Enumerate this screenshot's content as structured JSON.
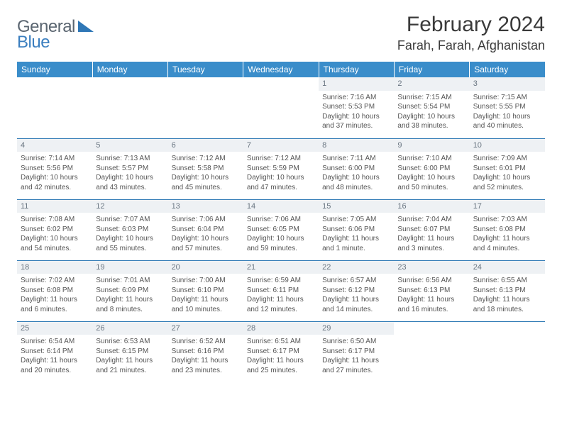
{
  "logo": {
    "text1": "General",
    "text2": "Blue",
    "triangle_color": "#2f77b6"
  },
  "header": {
    "month_title": "February 2024",
    "location": "Farah, Farah, Afghanistan"
  },
  "colors": {
    "header_bg": "#3a8dca",
    "header_text": "#ffffff",
    "rule": "#2f7ab5",
    "daynum_bg": "#eef1f4",
    "daynum_text": "#6a7682",
    "body_text": "#555555"
  },
  "day_headers": [
    "Sunday",
    "Monday",
    "Tuesday",
    "Wednesday",
    "Thursday",
    "Friday",
    "Saturday"
  ],
  "weeks": [
    [
      null,
      null,
      null,
      null,
      {
        "n": "1",
        "sr": "Sunrise: 7:16 AM",
        "ss": "Sunset: 5:53 PM",
        "dl1": "Daylight: 10 hours",
        "dl2": "and 37 minutes."
      },
      {
        "n": "2",
        "sr": "Sunrise: 7:15 AM",
        "ss": "Sunset: 5:54 PM",
        "dl1": "Daylight: 10 hours",
        "dl2": "and 38 minutes."
      },
      {
        "n": "3",
        "sr": "Sunrise: 7:15 AM",
        "ss": "Sunset: 5:55 PM",
        "dl1": "Daylight: 10 hours",
        "dl2": "and 40 minutes."
      }
    ],
    [
      {
        "n": "4",
        "sr": "Sunrise: 7:14 AM",
        "ss": "Sunset: 5:56 PM",
        "dl1": "Daylight: 10 hours",
        "dl2": "and 42 minutes."
      },
      {
        "n": "5",
        "sr": "Sunrise: 7:13 AM",
        "ss": "Sunset: 5:57 PM",
        "dl1": "Daylight: 10 hours",
        "dl2": "and 43 minutes."
      },
      {
        "n": "6",
        "sr": "Sunrise: 7:12 AM",
        "ss": "Sunset: 5:58 PM",
        "dl1": "Daylight: 10 hours",
        "dl2": "and 45 minutes."
      },
      {
        "n": "7",
        "sr": "Sunrise: 7:12 AM",
        "ss": "Sunset: 5:59 PM",
        "dl1": "Daylight: 10 hours",
        "dl2": "and 47 minutes."
      },
      {
        "n": "8",
        "sr": "Sunrise: 7:11 AM",
        "ss": "Sunset: 6:00 PM",
        "dl1": "Daylight: 10 hours",
        "dl2": "and 48 minutes."
      },
      {
        "n": "9",
        "sr": "Sunrise: 7:10 AM",
        "ss": "Sunset: 6:00 PM",
        "dl1": "Daylight: 10 hours",
        "dl2": "and 50 minutes."
      },
      {
        "n": "10",
        "sr": "Sunrise: 7:09 AM",
        "ss": "Sunset: 6:01 PM",
        "dl1": "Daylight: 10 hours",
        "dl2": "and 52 minutes."
      }
    ],
    [
      {
        "n": "11",
        "sr": "Sunrise: 7:08 AM",
        "ss": "Sunset: 6:02 PM",
        "dl1": "Daylight: 10 hours",
        "dl2": "and 54 minutes."
      },
      {
        "n": "12",
        "sr": "Sunrise: 7:07 AM",
        "ss": "Sunset: 6:03 PM",
        "dl1": "Daylight: 10 hours",
        "dl2": "and 55 minutes."
      },
      {
        "n": "13",
        "sr": "Sunrise: 7:06 AM",
        "ss": "Sunset: 6:04 PM",
        "dl1": "Daylight: 10 hours",
        "dl2": "and 57 minutes."
      },
      {
        "n": "14",
        "sr": "Sunrise: 7:06 AM",
        "ss": "Sunset: 6:05 PM",
        "dl1": "Daylight: 10 hours",
        "dl2": "and 59 minutes."
      },
      {
        "n": "15",
        "sr": "Sunrise: 7:05 AM",
        "ss": "Sunset: 6:06 PM",
        "dl1": "Daylight: 11 hours",
        "dl2": "and 1 minute."
      },
      {
        "n": "16",
        "sr": "Sunrise: 7:04 AM",
        "ss": "Sunset: 6:07 PM",
        "dl1": "Daylight: 11 hours",
        "dl2": "and 3 minutes."
      },
      {
        "n": "17",
        "sr": "Sunrise: 7:03 AM",
        "ss": "Sunset: 6:08 PM",
        "dl1": "Daylight: 11 hours",
        "dl2": "and 4 minutes."
      }
    ],
    [
      {
        "n": "18",
        "sr": "Sunrise: 7:02 AM",
        "ss": "Sunset: 6:08 PM",
        "dl1": "Daylight: 11 hours",
        "dl2": "and 6 minutes."
      },
      {
        "n": "19",
        "sr": "Sunrise: 7:01 AM",
        "ss": "Sunset: 6:09 PM",
        "dl1": "Daylight: 11 hours",
        "dl2": "and 8 minutes."
      },
      {
        "n": "20",
        "sr": "Sunrise: 7:00 AM",
        "ss": "Sunset: 6:10 PM",
        "dl1": "Daylight: 11 hours",
        "dl2": "and 10 minutes."
      },
      {
        "n": "21",
        "sr": "Sunrise: 6:59 AM",
        "ss": "Sunset: 6:11 PM",
        "dl1": "Daylight: 11 hours",
        "dl2": "and 12 minutes."
      },
      {
        "n": "22",
        "sr": "Sunrise: 6:57 AM",
        "ss": "Sunset: 6:12 PM",
        "dl1": "Daylight: 11 hours",
        "dl2": "and 14 minutes."
      },
      {
        "n": "23",
        "sr": "Sunrise: 6:56 AM",
        "ss": "Sunset: 6:13 PM",
        "dl1": "Daylight: 11 hours",
        "dl2": "and 16 minutes."
      },
      {
        "n": "24",
        "sr": "Sunrise: 6:55 AM",
        "ss": "Sunset: 6:13 PM",
        "dl1": "Daylight: 11 hours",
        "dl2": "and 18 minutes."
      }
    ],
    [
      {
        "n": "25",
        "sr": "Sunrise: 6:54 AM",
        "ss": "Sunset: 6:14 PM",
        "dl1": "Daylight: 11 hours",
        "dl2": "and 20 minutes."
      },
      {
        "n": "26",
        "sr": "Sunrise: 6:53 AM",
        "ss": "Sunset: 6:15 PM",
        "dl1": "Daylight: 11 hours",
        "dl2": "and 21 minutes."
      },
      {
        "n": "27",
        "sr": "Sunrise: 6:52 AM",
        "ss": "Sunset: 6:16 PM",
        "dl1": "Daylight: 11 hours",
        "dl2": "and 23 minutes."
      },
      {
        "n": "28",
        "sr": "Sunrise: 6:51 AM",
        "ss": "Sunset: 6:17 PM",
        "dl1": "Daylight: 11 hours",
        "dl2": "and 25 minutes."
      },
      {
        "n": "29",
        "sr": "Sunrise: 6:50 AM",
        "ss": "Sunset: 6:17 PM",
        "dl1": "Daylight: 11 hours",
        "dl2": "and 27 minutes."
      },
      null,
      null
    ]
  ]
}
